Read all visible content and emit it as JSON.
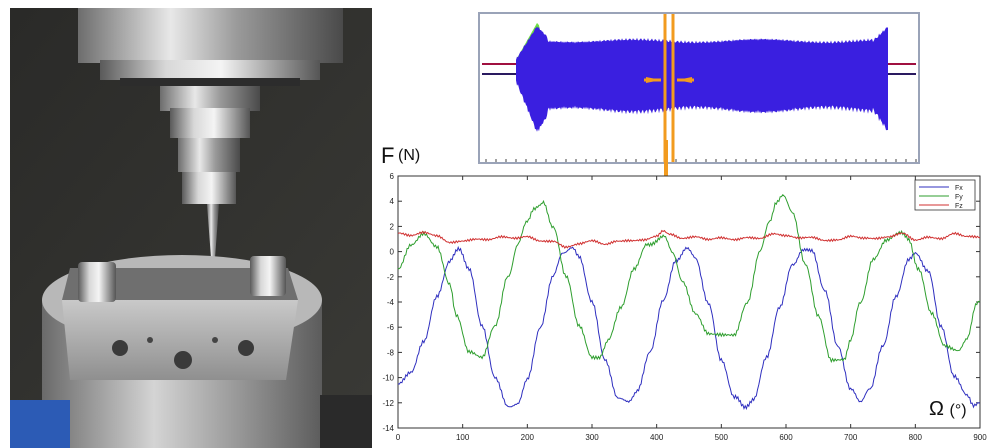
{
  "photo": {
    "description_icon": "milling-spindle-tool-photo"
  },
  "colors": {
    "fx": "#2f2fbf",
    "fy": "#2e9e2e",
    "fz": "#d03030",
    "arrow": "#f29b1f",
    "overview_fill": "#3a1fe0",
    "overview_top": "#6ee040",
    "overview_line": "#a01040"
  },
  "chart_data": {
    "type": "line",
    "ylabel_symbol": "F",
    "ylabel_unit": "(N)",
    "xlabel_symbol": "Ω",
    "xlabel_unit": "(°)",
    "xlim": [
      0,
      900
    ],
    "ylim": [
      -14,
      6
    ],
    "x_ticks": [
      0,
      100,
      200,
      300,
      400,
      500,
      600,
      700,
      800,
      900
    ],
    "y_ticks": [
      -14,
      -12,
      -10,
      -8,
      -6,
      -4,
      -2,
      0,
      2,
      4,
      6
    ],
    "legend_position": "top-right",
    "series": [
      {
        "name": "Fx",
        "x": [
          0,
          20,
          40,
          60,
          80,
          95,
          110,
          130,
          150,
          170,
          185,
          200,
          220,
          240,
          255,
          270,
          280,
          300,
          320,
          340,
          355,
          370,
          390,
          410,
          430,
          445,
          460,
          480,
          500,
          520,
          535,
          550,
          570,
          590,
          610,
          625,
          640,
          660,
          680,
          700,
          715,
          730,
          750,
          770,
          790,
          800,
          820,
          840,
          860,
          880,
          890,
          900
        ],
        "y": [
          -10.5,
          -9.5,
          -7,
          -3.5,
          -0.8,
          0.3,
          -1.5,
          -6,
          -10,
          -12.2,
          -12.2,
          -10,
          -6,
          -2,
          0,
          0.2,
          -0.5,
          -4,
          -8.5,
          -11.5,
          -12,
          -11,
          -8,
          -4,
          -0.8,
          0.3,
          -0.5,
          -4,
          -8.5,
          -11.5,
          -12.3,
          -11.8,
          -8.5,
          -4.5,
          -1,
          0,
          0.2,
          -3,
          -7.5,
          -11,
          -11.8,
          -11,
          -7.5,
          -3.5,
          -0.5,
          0,
          -1.5,
          -6,
          -10,
          -11.5,
          -12.3,
          -12
        ]
      },
      {
        "name": "Fy",
        "x": [
          0,
          20,
          40,
          60,
          80,
          90,
          110,
          130,
          150,
          170,
          185,
          200,
          210,
          220,
          225,
          240,
          260,
          280,
          300,
          310,
          325,
          345,
          365,
          385,
          410,
          425,
          440,
          460,
          480,
          500,
          520,
          540,
          560,
          575,
          585,
          595,
          610,
          630,
          650,
          670,
          690,
          700,
          715,
          735,
          755,
          775,
          790,
          805,
          825,
          845,
          865,
          880,
          895,
          900
        ],
        "y": [
          -1.5,
          0.5,
          1.5,
          0.5,
          -2.5,
          -5,
          -8,
          -8.5,
          -6,
          -2,
          0.5,
          2.5,
          3.5,
          3.8,
          3.8,
          2,
          -2,
          -6,
          -8.5,
          -8.5,
          -7,
          -4.5,
          -1.5,
          0.5,
          1.2,
          0,
          -2.5,
          -5,
          -6.5,
          -6.5,
          -6.5,
          -4,
          0,
          2.5,
          4,
          4.6,
          3,
          -1,
          -5,
          -8.5,
          -8.5,
          -7,
          -4,
          -0.5,
          1,
          1.5,
          1,
          -1.5,
          -5,
          -7.5,
          -7.8,
          -7,
          -4,
          -4
        ]
      },
      {
        "name": "Fz",
        "x": [
          0,
          20,
          40,
          60,
          80,
          100,
          120,
          140,
          160,
          180,
          200,
          220,
          240,
          260,
          280,
          300,
          320,
          340,
          360,
          380,
          400,
          410,
          420,
          440,
          460,
          480,
          500,
          520,
          540,
          560,
          580,
          600,
          620,
          640,
          660,
          680,
          700,
          720,
          740,
          760,
          780,
          800,
          820,
          840,
          860,
          880,
          900
        ],
        "y": [
          1.4,
          1.2,
          1.5,
          1.3,
          0.8,
          0.9,
          1.0,
          0.9,
          1.1,
          1.0,
          1.2,
          0.9,
          0.9,
          0.4,
          0.6,
          0.8,
          0.5,
          0.8,
          0.9,
          1.0,
          1.3,
          1.7,
          1.4,
          1.0,
          1.1,
          0.9,
          1.1,
          1.0,
          1.2,
          1.1,
          1.4,
          1.2,
          1.0,
          1.1,
          0.9,
          1.0,
          1.3,
          1.1,
          1.0,
          1.1,
          1.4,
          0.9,
          1.2,
          1.1,
          1.5,
          1.2,
          1.1
        ]
      }
    ]
  },
  "overview_chart": {
    "type": "area",
    "description_icon": "force-signal-overview"
  }
}
